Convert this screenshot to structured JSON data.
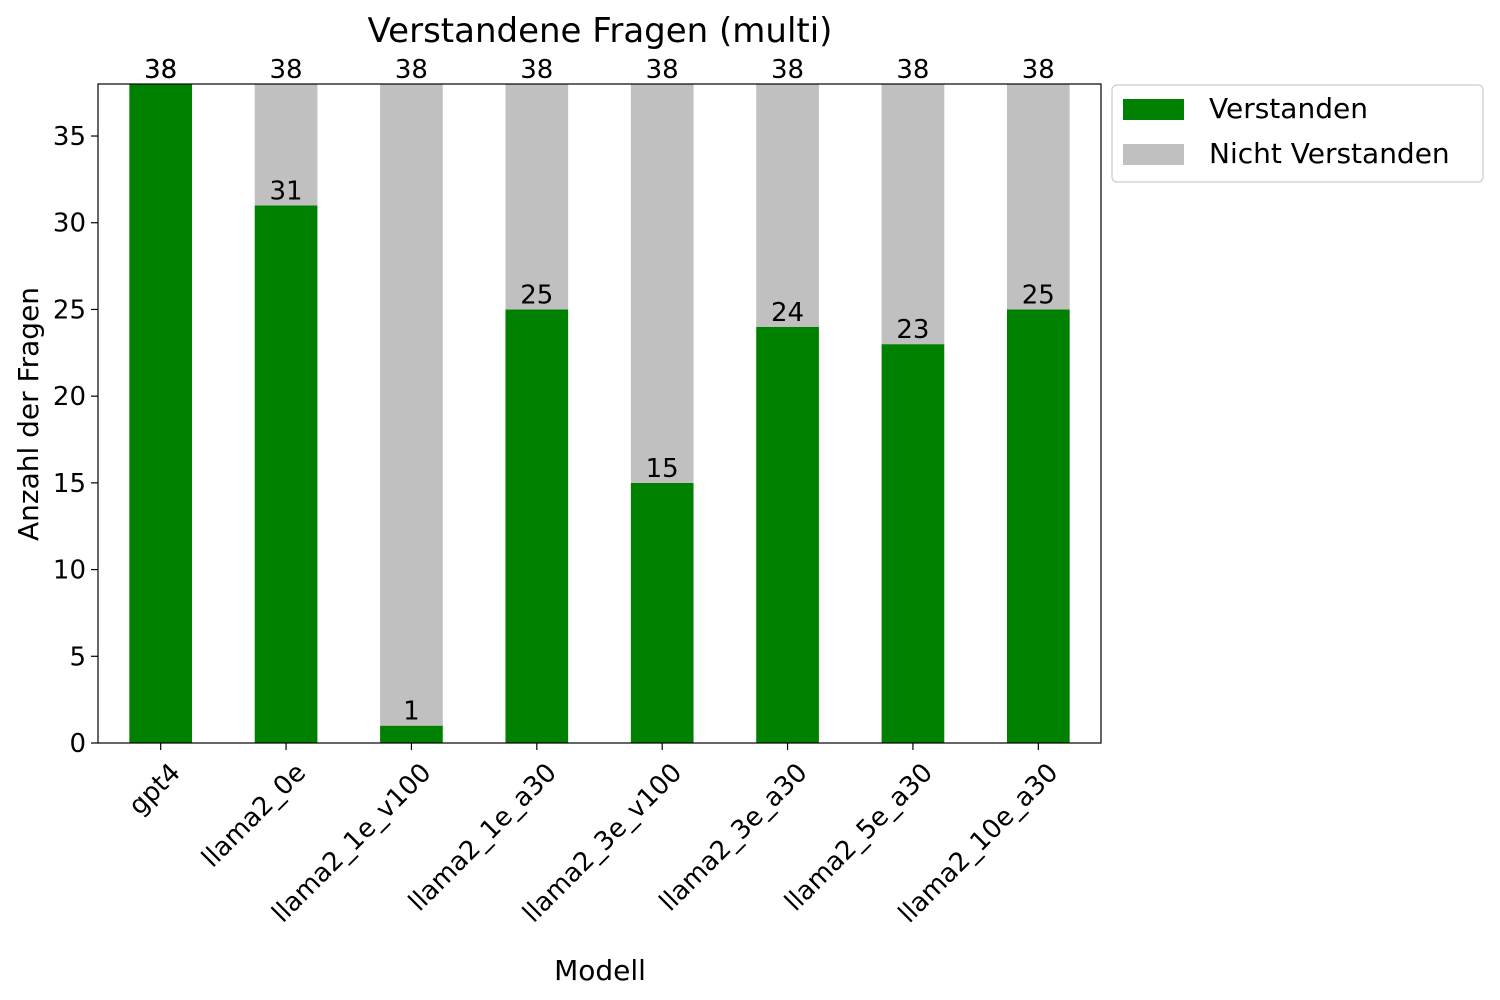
{
  "chart_data": {
    "type": "bar",
    "stacked": true,
    "title": "Verstandene Fragen (multi)",
    "xlabel": "Modell",
    "ylabel": "Anzahl der Fragen",
    "categories": [
      "gpt4",
      "llama2_0e",
      "llama2_1e_v100",
      "llama2_1e_a30",
      "llama2_3e_v100",
      "llama2_3e_a30",
      "llama2_5e_a30",
      "llama2_10e_a30"
    ],
    "series": [
      {
        "name": "Verstanden",
        "color": "#008000",
        "values": [
          38,
          31,
          1,
          25,
          15,
          24,
          23,
          25
        ]
      },
      {
        "name": "Nicht Verstanden",
        "color": "#c0c0c0",
        "values": [
          0,
          7,
          37,
          13,
          23,
          14,
          15,
          13
        ]
      }
    ],
    "total_labels": [
      38,
      38,
      38,
      38,
      38,
      38,
      38,
      38
    ],
    "ylim": [
      0,
      38
    ],
    "yticks": [
      0,
      5,
      10,
      15,
      20,
      25,
      30,
      35
    ],
    "xtick_rotation": 45,
    "grid": false,
    "legend_position": "outside-top-right"
  }
}
